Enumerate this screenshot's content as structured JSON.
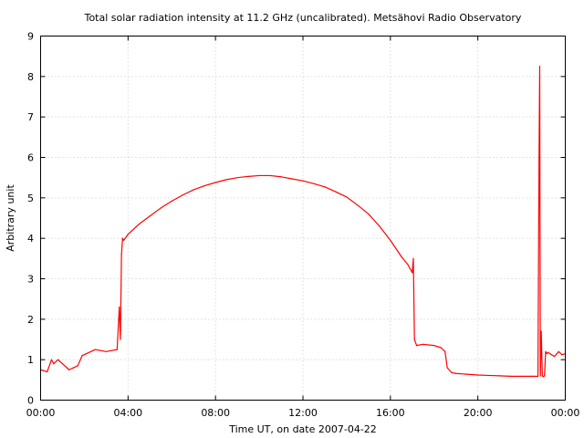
{
  "chart_data": {
    "type": "line",
    "title": "Total solar radiation intensity at 11.2 GHz (uncalibrated). Metsähovi Radio Observatory",
    "xlabel": "Time UT, on date 2007-04-22",
    "ylabel": "Arbitrary unit",
    "xlim": [
      0,
      24
    ],
    "ylim": [
      0,
      9
    ],
    "x_ticks": [
      0,
      4,
      8,
      12,
      16,
      20,
      24
    ],
    "x_tick_labels": [
      "00:00",
      "04:00",
      "08:00",
      "12:00",
      "16:00",
      "20:00",
      "00:00"
    ],
    "y_ticks": [
      0,
      1,
      2,
      3,
      4,
      5,
      6,
      7,
      8,
      9
    ],
    "y_tick_labels": [
      "0",
      "1",
      "2",
      "3",
      "4",
      "5",
      "6",
      "7",
      "8",
      "9"
    ],
    "grid": true,
    "line_color": "#ff0000",
    "series": [
      {
        "x": [
          0.0,
          0.3,
          0.5,
          0.6,
          0.8,
          1.0,
          1.3,
          1.5,
          1.7,
          1.9,
          2.1,
          2.5,
          3.0,
          3.5,
          3.6,
          3.65,
          3.7,
          3.75,
          3.8,
          4.0,
          4.5,
          5.0,
          5.5,
          6.0,
          6.5,
          7.0,
          7.5,
          8.0,
          8.5,
          9.0,
          9.5,
          10.0,
          10.5,
          11.0,
          11.5,
          12.0,
          12.5,
          13.0,
          13.5,
          14.0,
          14.5,
          15.0,
          15.5,
          16.0,
          16.5,
          16.8,
          17.0,
          17.05,
          17.1,
          17.2,
          17.5,
          18.0,
          18.3,
          18.5,
          18.6,
          18.8,
          19.0,
          19.5,
          20.0,
          20.5,
          21.0,
          21.5,
          22.0,
          22.5,
          22.75,
          22.8,
          22.83,
          22.86,
          22.9,
          22.95,
          23.0,
          23.05,
          23.1,
          23.15,
          23.2,
          23.5,
          23.7,
          23.85,
          24.0
        ],
        "y": [
          0.75,
          0.7,
          1.0,
          0.9,
          1.0,
          0.9,
          0.75,
          0.8,
          0.85,
          1.1,
          1.15,
          1.25,
          1.2,
          1.25,
          2.3,
          1.5,
          3.6,
          4.0,
          3.95,
          4.1,
          4.35,
          4.55,
          4.75,
          4.92,
          5.07,
          5.2,
          5.3,
          5.38,
          5.45,
          5.5,
          5.53,
          5.55,
          5.55,
          5.52,
          5.47,
          5.42,
          5.35,
          5.27,
          5.15,
          5.02,
          4.82,
          4.6,
          4.3,
          3.95,
          3.55,
          3.35,
          3.15,
          3.5,
          1.5,
          1.35,
          1.38,
          1.35,
          1.3,
          1.2,
          0.8,
          0.68,
          0.66,
          0.64,
          0.62,
          0.61,
          0.6,
          0.59,
          0.59,
          0.59,
          0.59,
          6.0,
          8.25,
          0.6,
          1.7,
          0.6,
          0.58,
          0.6,
          1.2,
          1.15,
          1.18,
          1.08,
          1.2,
          1.12,
          1.15
        ]
      }
    ]
  }
}
